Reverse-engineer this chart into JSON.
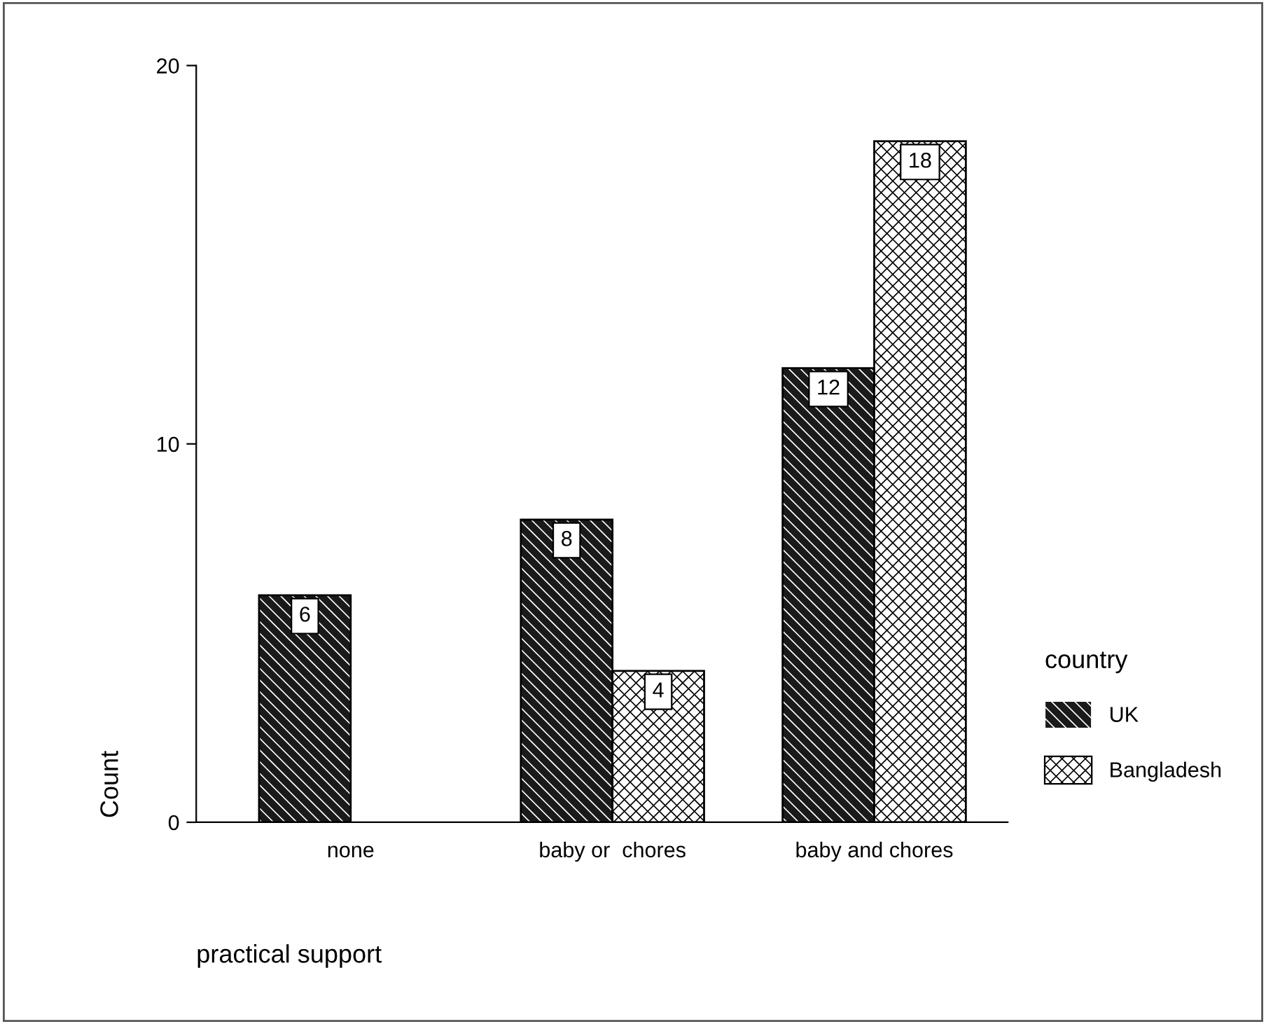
{
  "chart_data": {
    "type": "bar",
    "xlabel": "practical support",
    "ylabel": "Count",
    "legend_title": "country",
    "categories": [
      "none",
      "baby or  chores",
      "baby and chores"
    ],
    "series": [
      {
        "name": "UK",
        "color": "#1a1a1a",
        "values": [
          6,
          8,
          12
        ],
        "value_labels": [
          "6",
          "8",
          "12"
        ]
      },
      {
        "name": "Bangladesh",
        "color": "#ffffff",
        "values": [
          0,
          4,
          18
        ],
        "value_labels": [
          null,
          "4",
          "18"
        ]
      }
    ],
    "ylim": [
      0,
      20
    ],
    "yticks": [
      0,
      10,
      20
    ],
    "grid": false,
    "legend": "right"
  }
}
